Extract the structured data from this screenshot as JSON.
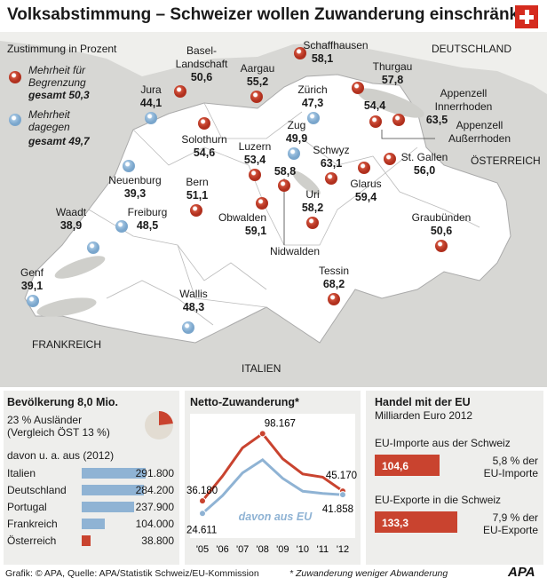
{
  "title": "Volksabstimmung – Schweizer wollen Zuwanderung einschränken",
  "map": {
    "legend": {
      "heading": "Zustimmung in Prozent",
      "majority_for": "Mehrheit für Begrenzung",
      "total_for": "gesamt 50,3",
      "majority_against": "Mehrheit dagegen",
      "total_against": "gesamt 49,7"
    },
    "countries": {
      "germany": "DEUTSCHLAND",
      "austria": "ÖSTERREICH",
      "france": "FRANKREICH",
      "italy": "ITALIEN"
    },
    "cantons": [
      {
        "name": "Schaffhausen",
        "value": "58,1",
        "result": "for"
      },
      {
        "name": "Basel-Landschaft",
        "value": "50,6",
        "result": "for"
      },
      {
        "name": "Aargau",
        "value": "55,2",
        "result": "for"
      },
      {
        "name": "Jura",
        "value": "44,1",
        "result": "against"
      },
      {
        "name": "Zürich",
        "value": "47,3",
        "result": "against"
      },
      {
        "name": "Thurgau",
        "value": "57,8",
        "result": "for"
      },
      {
        "name": "Appenzell Innerrhoden",
        "value": "63,5",
        "result": "for"
      },
      {
        "name": "Appenzell Außerrhoden",
        "value": "54,4",
        "result": "for"
      },
      {
        "name": "Solothurn",
        "value": "54,6",
        "result": "for"
      },
      {
        "name": "Zug",
        "value": "49,9",
        "result": "against"
      },
      {
        "name": "Luzern",
        "value": "53,4",
        "result": "for"
      },
      {
        "name": "Schwyz",
        "value": "63,1",
        "result": "for"
      },
      {
        "name": "St. Gallen",
        "value": "56,0",
        "result": "for"
      },
      {
        "name": "Neuenburg",
        "value": "39,3",
        "result": "against"
      },
      {
        "name": "Bern",
        "value": "51,1",
        "result": "for"
      },
      {
        "name": "Nidwalden",
        "value": "58,8",
        "result": "for"
      },
      {
        "name": "Glarus",
        "value": "59,4",
        "result": "for"
      },
      {
        "name": "Waadt",
        "value": "38,9",
        "result": "against"
      },
      {
        "name": "Freiburg",
        "value": "48,5",
        "result": "against"
      },
      {
        "name": "Obwalden",
        "value": "59,1",
        "result": "for"
      },
      {
        "name": "Uri",
        "value": "58,2",
        "result": "for"
      },
      {
        "name": "Graubünden",
        "value": "50,6",
        "result": "for"
      },
      {
        "name": "Genf",
        "value": "39,1",
        "result": "against"
      },
      {
        "name": "Tessin",
        "value": "68,2",
        "result": "for"
      },
      {
        "name": "Wallis",
        "value": "48,3",
        "result": "against"
      }
    ]
  },
  "population": {
    "title": "Bevölkerung 8,0 Mio.",
    "foreigners_line1": "23 % Ausländer",
    "foreigners_line2": "(Vergleich ÖST 13 %)",
    "foreigners_share": 23,
    "origin_heading": "davon u. a. aus (2012)",
    "chart_data": {
      "type": "bar",
      "categories": [
        "Italien",
        "Deutschland",
        "Portugal",
        "Frankreich",
        "Österreich"
      ],
      "values": [
        291800,
        284200,
        237900,
        104000,
        38800
      ],
      "labels": [
        "291.800",
        "284.200",
        "237.900",
        "104.000",
        "38.800"
      ]
    }
  },
  "immigration": {
    "title": "Netto-Zuwanderung*",
    "chart_data": {
      "type": "line",
      "x": [
        "'05",
        "'06",
        "'07",
        "'08",
        "'09",
        "'10",
        "'11",
        "'12"
      ],
      "series": [
        {
          "values": [
            36180,
            59000,
            85000,
            98167,
            75000,
            61000,
            58000,
            45170
          ]
        },
        {
          "name": "davon aus EU",
          "values": [
            24611,
            41000,
            62000,
            74000,
            57000,
            45000,
            43000,
            41858
          ]
        }
      ],
      "point_labels": {
        "first_net": "36.180",
        "peak_net": "98.167",
        "last_net": "45.170",
        "first_eu": "24.611",
        "last_eu": "41.858"
      }
    }
  },
  "trade": {
    "title": "Handel mit der EU",
    "subtitle": "Milliarden Euro 2012",
    "imports_label": "EU-Importe aus der Schweiz",
    "imports_value": "104,6",
    "imports_share_line1": "5,8 % der",
    "imports_share_line2": "EU-Importe",
    "exports_label": "EU-Exporte in die Schweiz",
    "exports_value": "133,3",
    "exports_share_line1": "7,9 % der",
    "exports_share_line2": "EU-Exporte",
    "chart_data": {
      "type": "bar",
      "categories": [
        "EU-Importe aus der Schweiz",
        "EU-Exporte in die Schweiz"
      ],
      "values": [
        104.6,
        133.3
      ]
    }
  },
  "footer": {
    "source": "Grafik: © APA, Quelle: APA/Statistik Schweiz/EU-Kommission",
    "note": "* Zuwanderung weniger Abwanderung",
    "logo": "APA"
  },
  "colors": {
    "red": "#c9432f",
    "blue": "#8fb3d4",
    "map_bg": "#efefec",
    "panel_bg": "#eeeeec"
  }
}
